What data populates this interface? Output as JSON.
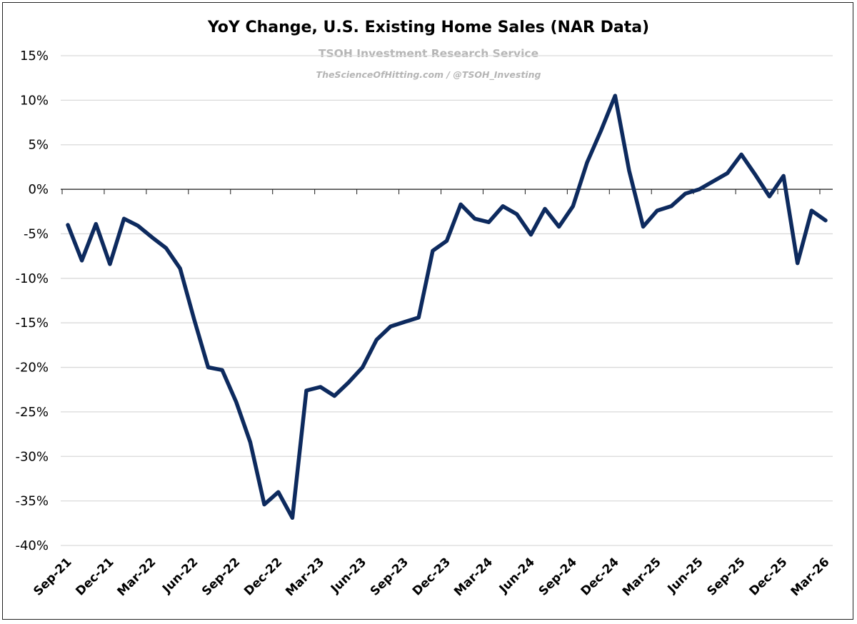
{
  "chart_data": {
    "type": "line",
    "title": "YoY Change, U.S. Existing Home Sales (NAR Data)",
    "subtitle": "TSOH Investment Research Service",
    "attribution": "TheScienceOfHitting.com / @TSOH_Investing",
    "xlabel": "",
    "ylabel": "",
    "ylim": [
      -40,
      15
    ],
    "y_ticks": [
      "15%",
      "10%",
      "5%",
      "0%",
      "-5%",
      "-10%",
      "-15%",
      "-20%",
      "-25%",
      "-30%",
      "-35%",
      "-40%"
    ],
    "y_tick_values": [
      15,
      10,
      5,
      0,
      -5,
      -10,
      -15,
      -20,
      -25,
      -30,
      -35,
      -40
    ],
    "x_tick_labels": [
      "Sep-21",
      "Dec-21",
      "Mar-22",
      "Jun-22",
      "Sep-22",
      "Dec-22",
      "Mar-23",
      "Jun-23",
      "Sep-23",
      "Dec-23",
      "Mar-24",
      "Jun-24",
      "Sep-24",
      "Dec-24",
      "Mar-25",
      "Jun-25",
      "Sep-25",
      "Dec-25",
      "Mar-26"
    ],
    "grid": true,
    "line_color": "#0d2a5e",
    "x": [
      "Sep-21",
      "Oct-21",
      "Nov-21",
      "Dec-21",
      "Jan-22",
      "Feb-22",
      "Mar-22",
      "Apr-22",
      "May-22",
      "Jun-22",
      "Jul-22",
      "Aug-22",
      "Sep-22",
      "Oct-22",
      "Nov-22",
      "Dec-22",
      "Jan-23",
      "Feb-23",
      "Mar-23",
      "Apr-23",
      "May-23",
      "Jun-23",
      "Jul-23",
      "Aug-23",
      "Sep-23",
      "Oct-23",
      "Nov-23",
      "Dec-23",
      "Jan-24",
      "Feb-24",
      "Mar-24",
      "Apr-24",
      "May-24",
      "Jun-24",
      "Jul-24",
      "Aug-24",
      "Sep-24",
      "Oct-24",
      "Nov-24",
      "Dec-24",
      "Jan-25",
      "Feb-25",
      "Mar-25",
      "Apr-25",
      "May-25",
      "Jun-25",
      "Jul-25",
      "Aug-25",
      "Sep-25",
      "Oct-25",
      "Nov-25",
      "Dec-25",
      "Jan-26",
      "Feb-26",
      "Mar-26"
    ],
    "values": [
      -4.0,
      -8.0,
      -3.9,
      -8.4,
      -3.3,
      -4.1,
      -5.4,
      -6.6,
      -8.9,
      -14.6,
      -20.0,
      -20.3,
      -23.9,
      -28.4,
      -35.4,
      -34.0,
      -36.9,
      -22.6,
      -22.2,
      -23.2,
      -21.7,
      -20.0,
      -16.9,
      -15.4,
      -14.9,
      -14.4,
      -6.9,
      -5.8,
      -1.7,
      -3.3,
      -3.7,
      -1.9,
      -2.8,
      -5.1,
      -2.2,
      -4.2,
      -1.9,
      3.0,
      6.6,
      10.5,
      2.1,
      -4.2,
      -2.4,
      -1.9,
      -0.5,
      0.0,
      0.9,
      1.8,
      3.9,
      1.6,
      -0.8,
      1.5,
      -8.3,
      -2.4,
      -3.5
    ]
  }
}
